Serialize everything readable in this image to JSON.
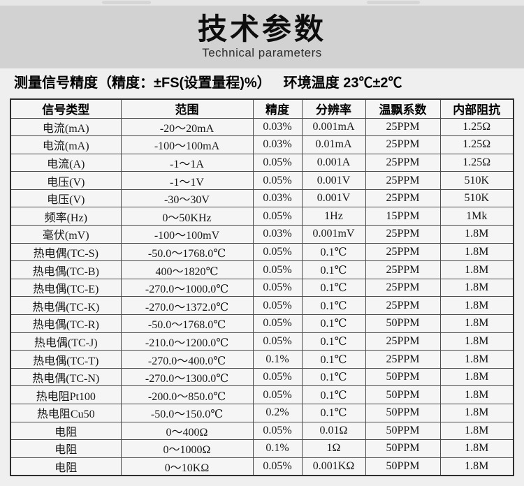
{
  "header": {
    "title": "技术参数",
    "subtitle": "Technical parameters"
  },
  "note": {
    "left": "测量信号精度（精度：±FS(设置量程)%）",
    "right": "环境温度 23℃±2℃"
  },
  "table": {
    "columns": [
      "信号类型",
      "范围",
      "精度",
      "分辨率",
      "温飘系数",
      "内部阻抗"
    ],
    "rows": [
      [
        "电流(mA)",
        "-20～20mA",
        "0.03%",
        "0.001mA",
        "25PPM",
        "1.25Ω"
      ],
      [
        "电流(mA)",
        "-100～100mA",
        "0.03%",
        "0.01mA",
        "25PPM",
        "1.25Ω"
      ],
      [
        "电流(A)",
        "-1～1A",
        "0.05%",
        "0.001A",
        "25PPM",
        "1.25Ω"
      ],
      [
        "电压(V)",
        "-1～1V",
        "0.05%",
        "0.001V",
        "25PPM",
        "510K"
      ],
      [
        "电压(V)",
        "-30～30V",
        "0.03%",
        "0.001V",
        "25PPM",
        "510K"
      ],
      [
        "频率(Hz)",
        "0～50KHz",
        "0.05%",
        "1Hz",
        "15PPM",
        "1Mk"
      ],
      [
        "毫伏(mV)",
        "-100～100mV",
        "0.03%",
        "0.001mV",
        "25PPM",
        "1.8M"
      ],
      [
        "热电偶(TC-S)",
        "-50.0～1768.0℃",
        "0.05%",
        "0.1℃",
        "25PPM",
        "1.8M"
      ],
      [
        "热电偶(TC-B)",
        "400～1820℃",
        "0.05%",
        "0.1℃",
        "25PPM",
        "1.8M"
      ],
      [
        "热电偶(TC-E)",
        "-270.0～1000.0℃",
        "0.05%",
        "0.1℃",
        "25PPM",
        "1.8M"
      ],
      [
        "热电偶(TC-K)",
        "-270.0～1372.0℃",
        "0.05%",
        "0.1℃",
        "25PPM",
        "1.8M"
      ],
      [
        "热电偶(TC-R)",
        "-50.0～1768.0℃",
        "0.05%",
        "0.1℃",
        "50PPM",
        "1.8M"
      ],
      [
        "热电偶(TC-J)",
        "-210.0～1200.0℃",
        "0.05%",
        "0.1℃",
        "25PPM",
        "1.8M"
      ],
      [
        "热电偶(TC-T)",
        "-270.0～400.0℃",
        "0.1%",
        "0.1℃",
        "25PPM",
        "1.8M"
      ],
      [
        "热电偶(TC-N)",
        "-270.0～1300.0℃",
        "0.05%",
        "0.1℃",
        "50PPM",
        "1.8M"
      ],
      [
        "热电阻Pt100",
        "-200.0～850.0℃",
        "0.05%",
        "0.1℃",
        "50PPM",
        "1.8M"
      ],
      [
        "热电阻Cu50",
        "-50.0～150.0℃",
        "0.2%",
        "0.1℃",
        "50PPM",
        "1.8M"
      ],
      [
        "电阻",
        "0～400Ω",
        "0.05%",
        "0.01Ω",
        "50PPM",
        "1.8M"
      ],
      [
        "电阻",
        "0～1000Ω",
        "0.1%",
        "1Ω",
        "50PPM",
        "1.8M"
      ],
      [
        "电阻",
        "0～10KΩ",
        "0.05%",
        "0.001KΩ",
        "50PPM",
        "1.8M"
      ]
    ]
  },
  "colors": {
    "banner_bg": "#d2d2d2",
    "page_bg": "#efefef",
    "table_cell_bg": "#f5f5f5",
    "table_border": "#4d4d4d",
    "text": "#000000"
  }
}
